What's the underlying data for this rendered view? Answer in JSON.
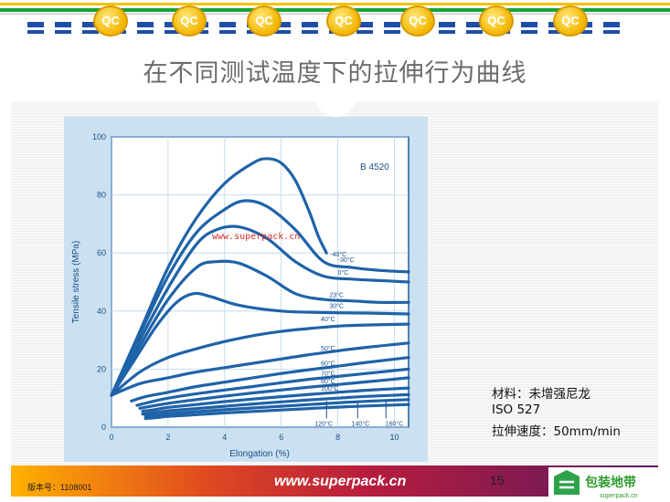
{
  "header": {
    "badge_text": "QC",
    "title": "在不同测试温度下的拉伸行为曲线"
  },
  "notes": {
    "line1": "材料：未增强尼龙",
    "line2": "ISO 527",
    "line3": "拉伸速度：50mm/min"
  },
  "footer": {
    "version": "版本号：1108001",
    "site": "www.superpack.cn",
    "page_number": "15",
    "logo_text": "包装地带",
    "logo_url": "superpack.cn"
  },
  "colors": {
    "curve": "#1f63a8",
    "plot_bg": "#cbe1f2",
    "frame": "#1b5d9a"
  },
  "chart_data": {
    "type": "line",
    "material_code": "B 4520",
    "watermark": "www.superpack.cn",
    "xlabel": "Elongation (%)",
    "ylabel": "Tensile stress (MPa)",
    "xlim": [
      0,
      10.5
    ],
    "ylim": [
      0,
      100
    ],
    "xticks": [
      "0",
      "2",
      "4",
      "6",
      "8",
      "10"
    ],
    "yticks": [
      "0",
      "20",
      "40",
      "60",
      "80",
      "100"
    ],
    "series": [
      {
        "name": "-40°C",
        "x": [
          0,
          1,
          2,
          3,
          4,
          5,
          5.5,
          6,
          6.5,
          7,
          7.3,
          7.6
        ],
        "y": [
          11,
          33,
          55,
          72,
          84,
          91,
          92.5,
          91,
          85,
          74,
          66,
          60
        ]
      },
      {
        "name": "-30°C",
        "x": [
          0,
          1,
          2,
          3,
          4,
          4.7,
          5.5,
          6.5,
          7.5,
          8.5,
          9.5,
          10.5
        ],
        "y": [
          11,
          32,
          52,
          67,
          75,
          78,
          76,
          68,
          57,
          55,
          54,
          53.5
        ]
      },
      {
        "name": "0°C",
        "x": [
          0,
          1,
          2,
          3,
          3.7,
          4.5,
          5.5,
          6.5,
          7.5,
          8.5,
          9.5,
          10.5
        ],
        "y": [
          11,
          30,
          48,
          63,
          68,
          69,
          65,
          57,
          52,
          51,
          50.5,
          50
        ]
      },
      {
        "name": "23°C",
        "x": [
          0,
          1,
          2,
          3,
          3.7,
          4.5,
          5.5,
          6.5,
          7.5,
          8.5,
          9.5,
          10.5
        ],
        "y": [
          11,
          28,
          44,
          55,
          57,
          56.5,
          52,
          46,
          44,
          43.5,
          43,
          43
        ]
      },
      {
        "name": "30°C",
        "x": [
          0,
          0.8,
          1.6,
          2.3,
          2.9,
          3.5,
          4.5,
          6,
          7.5,
          9,
          10.5
        ],
        "y": [
          11,
          23,
          35,
          43,
          46,
          45,
          42,
          40,
          39.5,
          39.3,
          39
        ]
      },
      {
        "name": "40°C",
        "x": [
          0,
          1,
          2,
          3,
          4,
          5,
          6,
          7,
          8,
          9,
          10.5
        ],
        "y": [
          11,
          19,
          24,
          27,
          29.5,
          31.5,
          33,
          34,
          34.8,
          35.2,
          35.5
        ]
      },
      {
        "name": "50°C",
        "x": [
          0,
          1,
          2,
          3,
          4,
          5,
          6,
          7,
          8,
          9,
          10.5
        ],
        "y": [
          11,
          15,
          17,
          19,
          20.5,
          22,
          23.5,
          25,
          26.3,
          27.5,
          29
        ]
      },
      {
        "name": "60°C",
        "x": [
          0.7,
          1.2,
          2,
          3,
          4,
          5,
          6,
          7,
          8,
          9,
          10.5
        ],
        "y": [
          9,
          10.5,
          12,
          14,
          15.5,
          17,
          18.5,
          19.8,
          21,
          22.3,
          24
        ]
      },
      {
        "name": "70°C",
        "x": [
          0.9,
          1.3,
          2,
          3,
          4,
          5,
          6,
          7,
          8,
          9,
          10.5
        ],
        "y": [
          7.5,
          8.5,
          10,
          11.5,
          12.8,
          14,
          15.3,
          16.5,
          17.5,
          18.5,
          20
        ]
      },
      {
        "name": "80°C",
        "x": [
          1,
          1.4,
          2,
          3,
          4,
          5,
          6,
          7,
          8,
          9,
          10.5
        ],
        "y": [
          6.5,
          7.2,
          8.2,
          9.5,
          10.7,
          11.8,
          12.8,
          13.8,
          14.7,
          15.6,
          17
        ]
      },
      {
        "name": "100°C",
        "x": [
          1.1,
          1.5,
          2,
          3,
          4,
          5,
          6,
          7,
          8,
          9,
          10.5
        ],
        "y": [
          5.5,
          6,
          6.8,
          7.8,
          8.8,
          9.7,
          10.5,
          11.3,
          12,
          12.7,
          13.5
        ]
      },
      {
        "name": "120°C",
        "x": [
          1.1,
          1.5,
          2,
          3,
          4,
          5,
          6,
          7,
          8,
          9,
          10.5
        ],
        "y": [
          4.5,
          5,
          5.6,
          6.4,
          7.2,
          8,
          8.7,
          9.4,
          10,
          10.6,
          11.2
        ]
      },
      {
        "name": "140°C",
        "x": [
          1.2,
          1.6,
          2,
          3,
          4,
          5,
          6,
          7,
          8,
          9,
          10.5
        ],
        "y": [
          3.8,
          4.2,
          4.6,
          5.3,
          6,
          6.6,
          7.2,
          7.8,
          8.4,
          8.9,
          9.5
        ]
      },
      {
        "name": "160°C",
        "x": [
          1.2,
          1.6,
          2,
          3,
          4,
          5,
          6,
          7,
          8,
          9,
          10.5
        ],
        "y": [
          3,
          3.3,
          3.7,
          4.3,
          4.9,
          5.4,
          5.9,
          6.4,
          6.9,
          7.3,
          7.8
        ]
      }
    ],
    "end_labels": [
      "-40°C",
      "-30°C",
      "0°C",
      "23°C",
      "30°C",
      "40°C",
      "50°C",
      "60°C",
      "70°C",
      "80°C",
      "100°C"
    ],
    "bottom_labels": [
      {
        "text": "120°C",
        "x": 7.5,
        "arrow_to": 7.6
      },
      {
        "text": "140°C",
        "x": 8.8,
        "arrow_to": 8.7
      },
      {
        "text": "160°C",
        "x": 10.0,
        "arrow_to": 9.7
      }
    ]
  }
}
